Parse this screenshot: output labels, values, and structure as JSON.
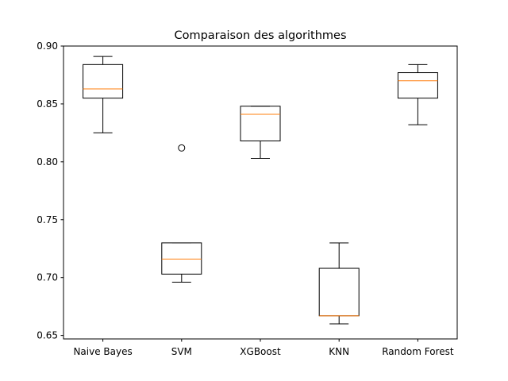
{
  "chart_data": {
    "type": "box",
    "title": "Comparaison des algorithmes",
    "xlabel": "",
    "ylabel": "",
    "ylim": [
      0.647,
      0.9
    ],
    "yticks": [
      0.65,
      0.7,
      0.75,
      0.8,
      0.85,
      0.9
    ],
    "ytick_labels": [
      "0.65",
      "0.70",
      "0.75",
      "0.80",
      "0.85",
      "0.90"
    ],
    "categories": [
      "Naive Bayes",
      "SVM",
      "XGBoost",
      "KNN",
      "Random Forest"
    ],
    "grid": false,
    "legend": "none",
    "box_color": "#000000",
    "median_color": "#ff7f0e",
    "boxes": [
      {
        "category": "Naive Bayes",
        "whisker_low": 0.825,
        "q1": 0.855,
        "median": 0.863,
        "q3": 0.884,
        "whisker_high": 0.891,
        "outliers": []
      },
      {
        "category": "SVM",
        "whisker_low": 0.696,
        "q1": 0.703,
        "median": 0.716,
        "q3": 0.73,
        "whisker_high": 0.73,
        "outliers": [
          0.812
        ]
      },
      {
        "category": "XGBoost",
        "whisker_low": 0.803,
        "q1": 0.818,
        "median": 0.841,
        "q3": 0.848,
        "whisker_high": 0.848,
        "outliers": []
      },
      {
        "category": "KNN",
        "whisker_low": 0.66,
        "q1": 0.667,
        "median": 0.667,
        "q3": 0.708,
        "whisker_high": 0.73,
        "outliers": []
      },
      {
        "category": "Random Forest",
        "whisker_low": 0.832,
        "q1": 0.855,
        "median": 0.87,
        "q3": 0.877,
        "whisker_high": 0.884,
        "outliers": []
      }
    ]
  }
}
